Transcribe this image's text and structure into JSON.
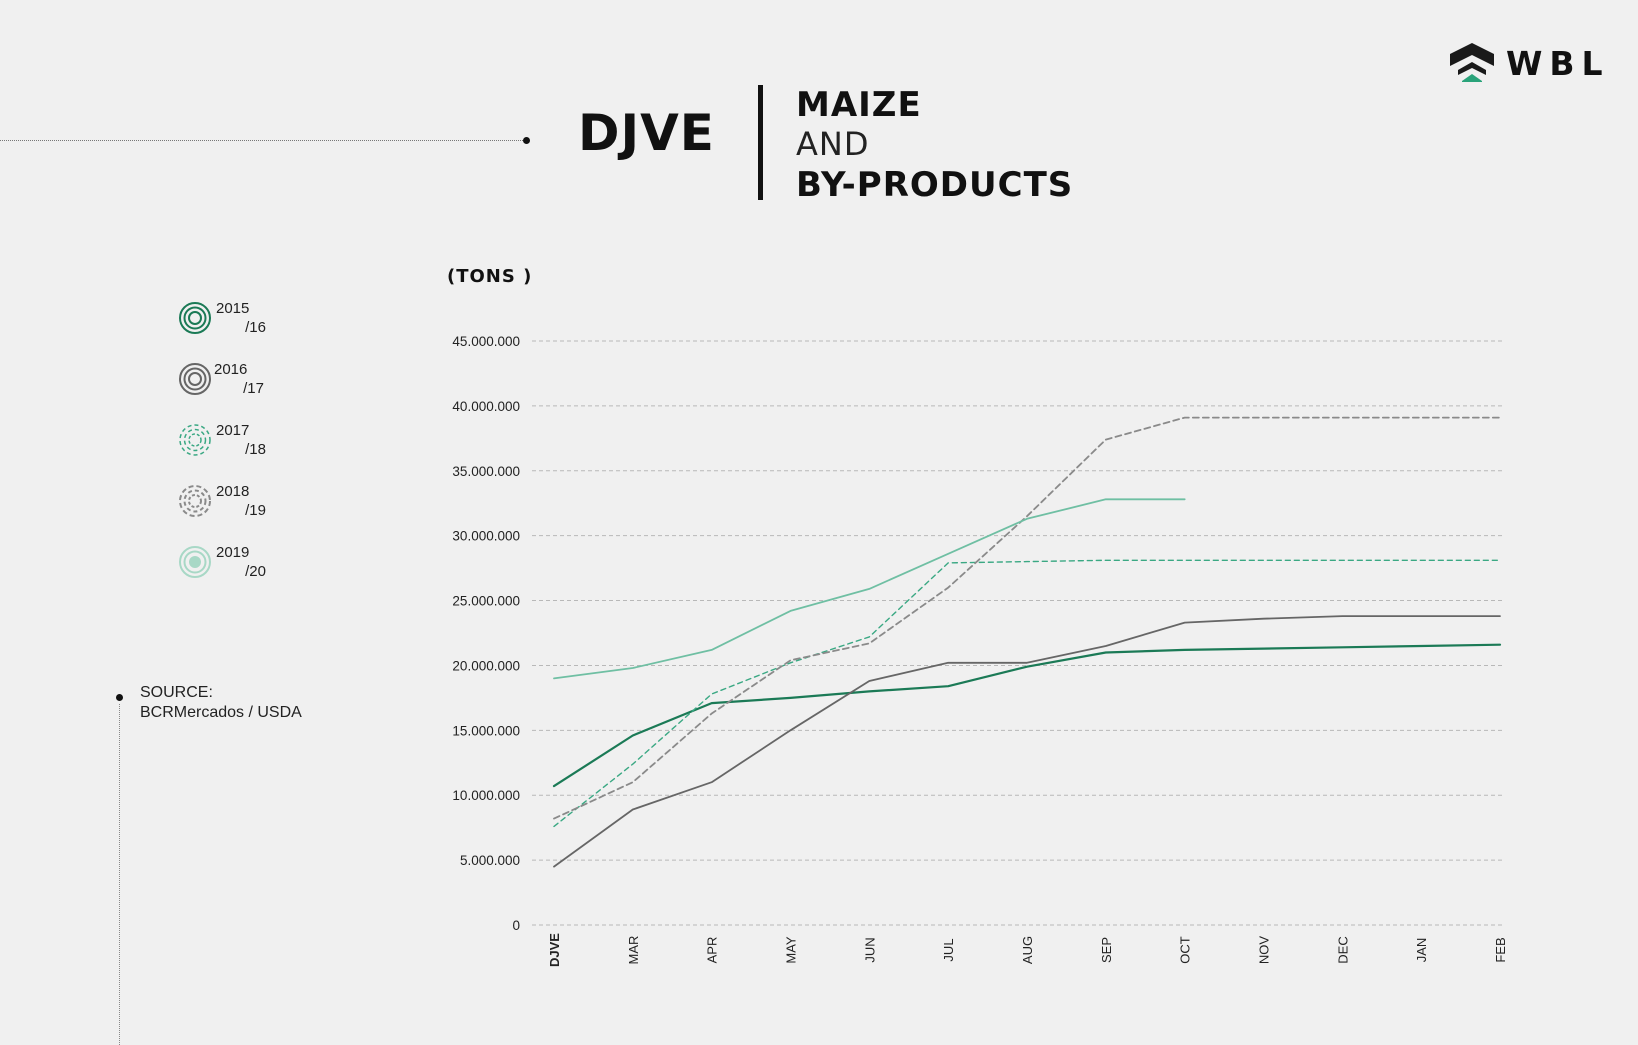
{
  "header": {
    "title": "DJVE",
    "subtitle_line1": "MAIZE",
    "subtitle_line2": "AND",
    "subtitle_line3": "BY-PRODUCTS",
    "logo_text": "WBL"
  },
  "source": {
    "label": "SOURCE:",
    "value": "BCRMercados / USDA"
  },
  "colors": {
    "dark_green": "#1b7a56",
    "dark_gray": "#666666",
    "light_green": "#3aa883",
    "mid_gray": "#8a8a8a",
    "pale_green": "#6fbfa3"
  },
  "chart_data": {
    "type": "line",
    "unit_label": "(TONS )",
    "categories": [
      "DJVE",
      "MAR",
      "APR",
      "MAY",
      "JUN",
      "JUL",
      "AUG",
      "SEP",
      "OCT",
      "NOV",
      "DEC",
      "JAN",
      "FEB"
    ],
    "ylim": [
      0,
      45000000
    ],
    "yticks": [
      0,
      5000000,
      10000000,
      15000000,
      20000000,
      25000000,
      30000000,
      35000000,
      40000000,
      45000000
    ],
    "ytick_labels": [
      "0",
      "5.000.000",
      "10.000.000",
      "15.000.000",
      "20.000.000",
      "25.000.000",
      "30.000.000",
      "35.000.000",
      "40.000.000",
      "45.000.000"
    ],
    "grid": true,
    "legend_position": "left",
    "series": [
      {
        "name_line1": "2015",
        "name_line2": "/16",
        "color": "#1b7a56",
        "dash": "solid",
        "width": 2.2,
        "values": [
          10700000,
          14600000,
          17100000,
          17500000,
          18000000,
          18400000,
          19900000,
          21000000,
          21200000,
          21300000,
          21400000,
          21500000,
          21600000
        ]
      },
      {
        "name_line1": "2016",
        "name_line2": "/17",
        "color": "#666666",
        "dash": "solid",
        "width": 1.8,
        "values": [
          4500000,
          8900000,
          11000000,
          15000000,
          18800000,
          20200000,
          20200000,
          21500000,
          23300000,
          23600000,
          23800000,
          23800000,
          23800000
        ]
      },
      {
        "name_line1": "2017",
        "name_line2": "/18",
        "color": "#3aa883",
        "dash": "dashed",
        "width": 1.4,
        "values": [
          7600000,
          12400000,
          17800000,
          20200000,
          22200000,
          27900000,
          28000000,
          28100000,
          28100000,
          28100000,
          28100000,
          28100000,
          28100000
        ]
      },
      {
        "name_line1": "2018",
        "name_line2": "/19",
        "color": "#8a8a8a",
        "dash": "dashed",
        "width": 1.8,
        "values": [
          8200000,
          11000000,
          16300000,
          20400000,
          21700000,
          26000000,
          31500000,
          37400000,
          39100000,
          39100000,
          39100000,
          39100000,
          39100000
        ]
      },
      {
        "name_line1": "2019",
        "name_line2": "/20",
        "color": "#6fbfa3",
        "dash": "solid",
        "width": 1.8,
        "values": [
          19000000,
          19800000,
          21200000,
          24200000,
          25900000,
          28600000,
          31300000,
          32800000,
          32800000,
          null,
          null,
          null,
          null
        ]
      }
    ]
  }
}
